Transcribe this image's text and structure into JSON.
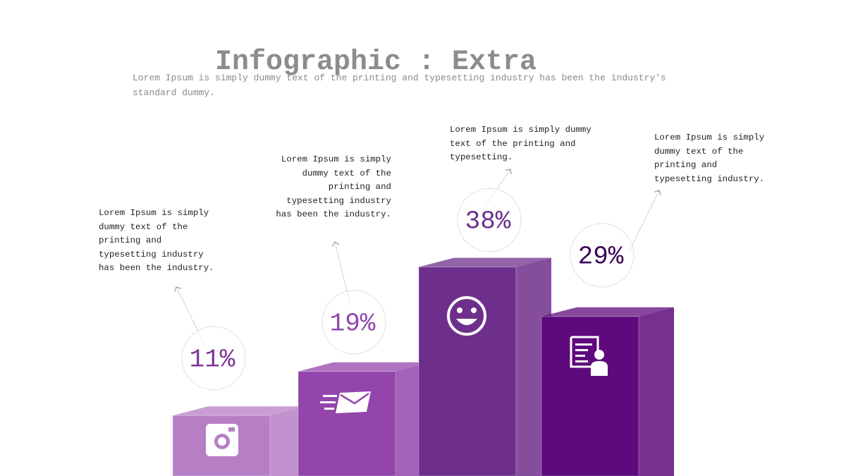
{
  "chart_data": {
    "type": "bar",
    "title": "Infographic : Extra",
    "subtitle": "Lorem Ipsum is simply dummy text of the printing and typesetting industry  has been the industry's standard dummy.",
    "values": [
      11,
      19,
      38,
      29
    ],
    "value_labels": [
      "11%",
      "19%",
      "38%",
      "29%"
    ],
    "descriptions": [
      "Lorem Ipsum is simply dummy text of the printing and typesetting industry has been the industry.",
      "Lorem Ipsum is simply dummy text of the printing and typesetting industry has been the industry.",
      "Lorem Ipsum is simply dummy text of the printing and typesetting.",
      "Lorem Ipsum is simply dummy text of the printing and typesetting industry."
    ],
    "colors": [
      "#b77ec6",
      "#9345ac",
      "#6e2f8c",
      "#5f0a7c"
    ],
    "label_colors": [
      "#7b3596",
      "#9345ac",
      "#6e2f8c",
      "#3b0558"
    ]
  }
}
